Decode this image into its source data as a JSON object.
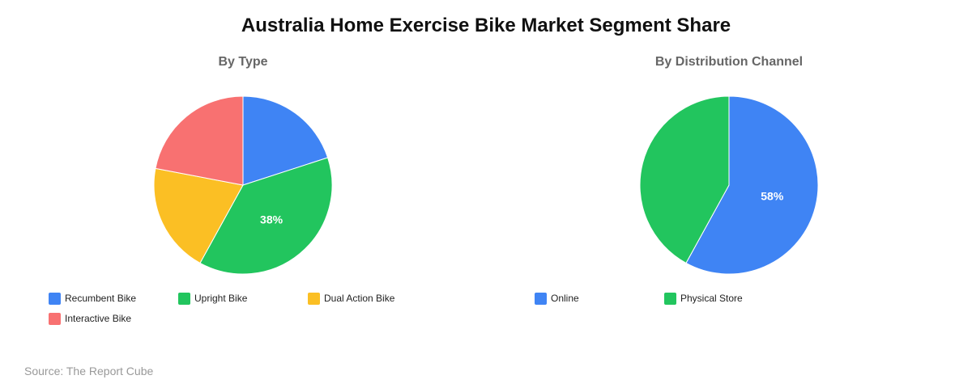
{
  "title": "Australia Home Exercise Bike Market Segment Share",
  "source": "Source: The Report Cube",
  "colors": {
    "blue": "#3f84f4",
    "green": "#22c55e",
    "yellow": "#fbbf24",
    "red": "#f87171"
  },
  "chart_data": [
    {
      "type": "pie",
      "title": "By Type",
      "legend_position": "bottom",
      "slices": [
        {
          "label": "Recumbent Bike",
          "value": 20,
          "color": "#3f84f4",
          "value_label": ""
        },
        {
          "label": "Upright Bike",
          "value": 38,
          "color": "#22c55e",
          "value_label": "38%"
        },
        {
          "label": "Dual Action Bike",
          "value": 20,
          "color": "#fbbf24",
          "value_label": ""
        },
        {
          "label": "Interactive Bike",
          "value": 22,
          "color": "#f87171",
          "value_label": ""
        }
      ]
    },
    {
      "type": "pie",
      "title": "By Distribution Channel",
      "legend_position": "bottom",
      "slices": [
        {
          "label": "Online",
          "value": 58,
          "color": "#3f84f4",
          "value_label": "58%"
        },
        {
          "label": "Physical Store",
          "value": 42,
          "color": "#22c55e",
          "value_label": ""
        }
      ]
    }
  ]
}
